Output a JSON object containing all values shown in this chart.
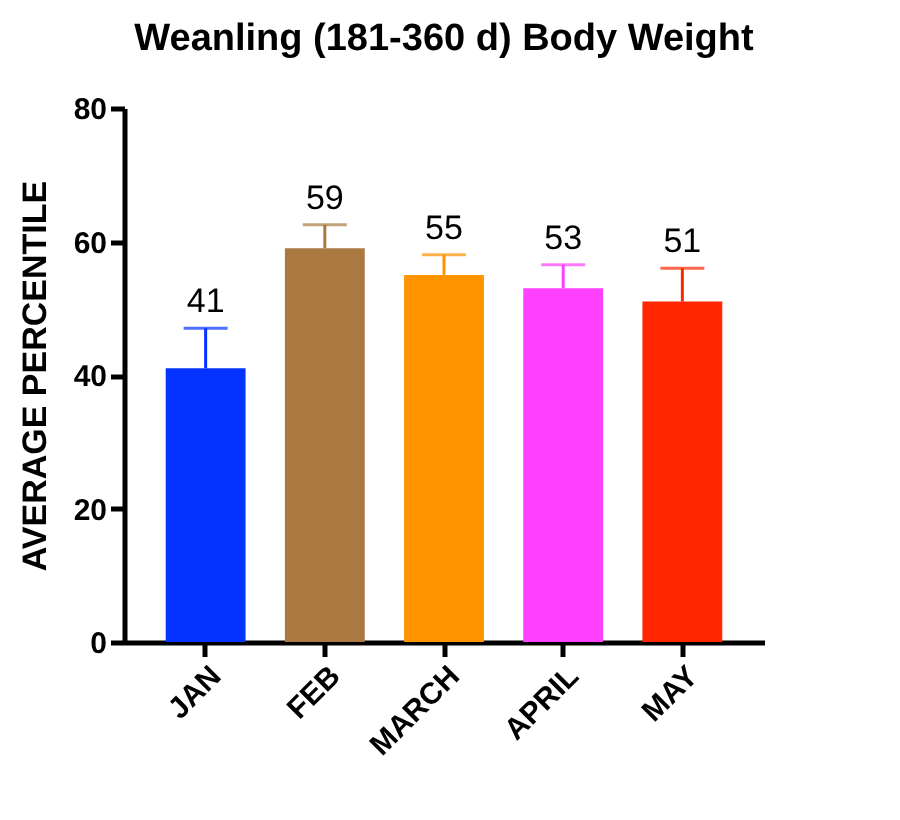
{
  "chart_data": {
    "type": "bar",
    "title": "Weanling (181-360 d) Body Weight",
    "ylabel": "AVERAGE PERCENTILE",
    "categories": [
      "JAN",
      "FEB",
      "MARCH",
      "APRIL",
      "MAY"
    ],
    "values": [
      41,
      59,
      55,
      53,
      51
    ],
    "colors": [
      "#0433ff",
      "#aa7942",
      "#ff9300",
      "#ff40ff",
      "#ff2600"
    ],
    "errors": [
      [
        41,
        47
      ],
      [
        59,
        62.5
      ],
      [
        55,
        58
      ],
      [
        53,
        56.5
      ],
      [
        51,
        56
      ]
    ],
    "data_labels": true,
    "ylim": [
      0,
      80
    ],
    "yticks": [
      0,
      20,
      40,
      60,
      80
    ]
  }
}
